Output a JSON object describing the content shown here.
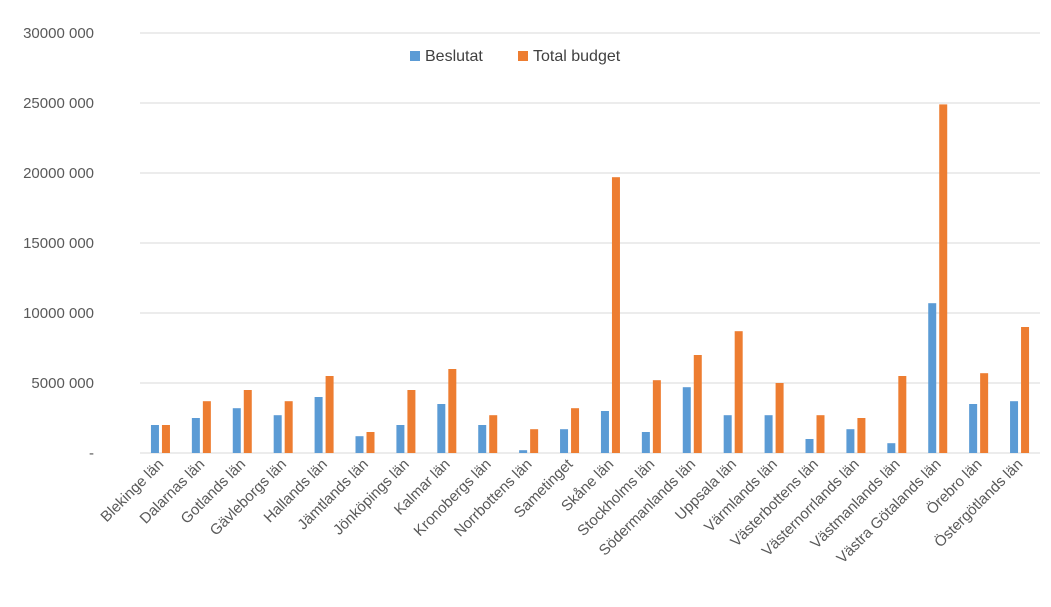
{
  "chart_data": {
    "type": "bar",
    "title": "",
    "xlabel": "",
    "ylabel": "",
    "ylim": [
      0,
      30000000
    ],
    "y_ticks": [
      {
        "value": 0,
        "label": "-"
      },
      {
        "value": 5000000,
        "label": "5000 000"
      },
      {
        "value": 10000000,
        "label": "10000 000"
      },
      {
        "value": 15000000,
        "label": "15000 000"
      },
      {
        "value": 20000000,
        "label": "20000 000"
      },
      {
        "value": 25000000,
        "label": "25000 000"
      },
      {
        "value": 30000000,
        "label": "30000 000"
      }
    ],
    "grid": true,
    "legend_position": "top-center",
    "categories": [
      "Blekinge län",
      "Dalarnas län",
      "Gotlands län",
      "Gävleborgs län",
      "Hallands län",
      "Jämtlands län",
      "Jönköpings län",
      "Kalmar län",
      "Kronobergs län",
      "Norrbottens län",
      "Sametinget",
      "Skåne län",
      "Stockholms län",
      "Södermanlands län",
      "Uppsala län",
      "Värmlands län",
      "Västerbottens län",
      "Västernorrlands län",
      "Västmanlands län",
      "Västra Götalands län",
      "Örebro län",
      "Östergötlands län"
    ],
    "series": [
      {
        "name": "Beslutat",
        "color": "#5B9BD5",
        "values": [
          2000000,
          2500000,
          3200000,
          2700000,
          4000000,
          1200000,
          2000000,
          3500000,
          2000000,
          200000,
          1700000,
          3000000,
          1500000,
          4700000,
          2700000,
          2700000,
          1000000,
          1700000,
          700000,
          10700000,
          3500000,
          3700000
        ]
      },
      {
        "name": "Total budget",
        "color": "#ED7D31",
        "values": [
          2000000,
          3700000,
          4500000,
          3700000,
          5500000,
          1500000,
          4500000,
          6000000,
          2700000,
          1700000,
          3200000,
          19700000,
          5200000,
          7000000,
          8700000,
          5000000,
          2700000,
          2500000,
          5500000,
          24900000,
          5700000,
          9000000
        ]
      }
    ]
  }
}
